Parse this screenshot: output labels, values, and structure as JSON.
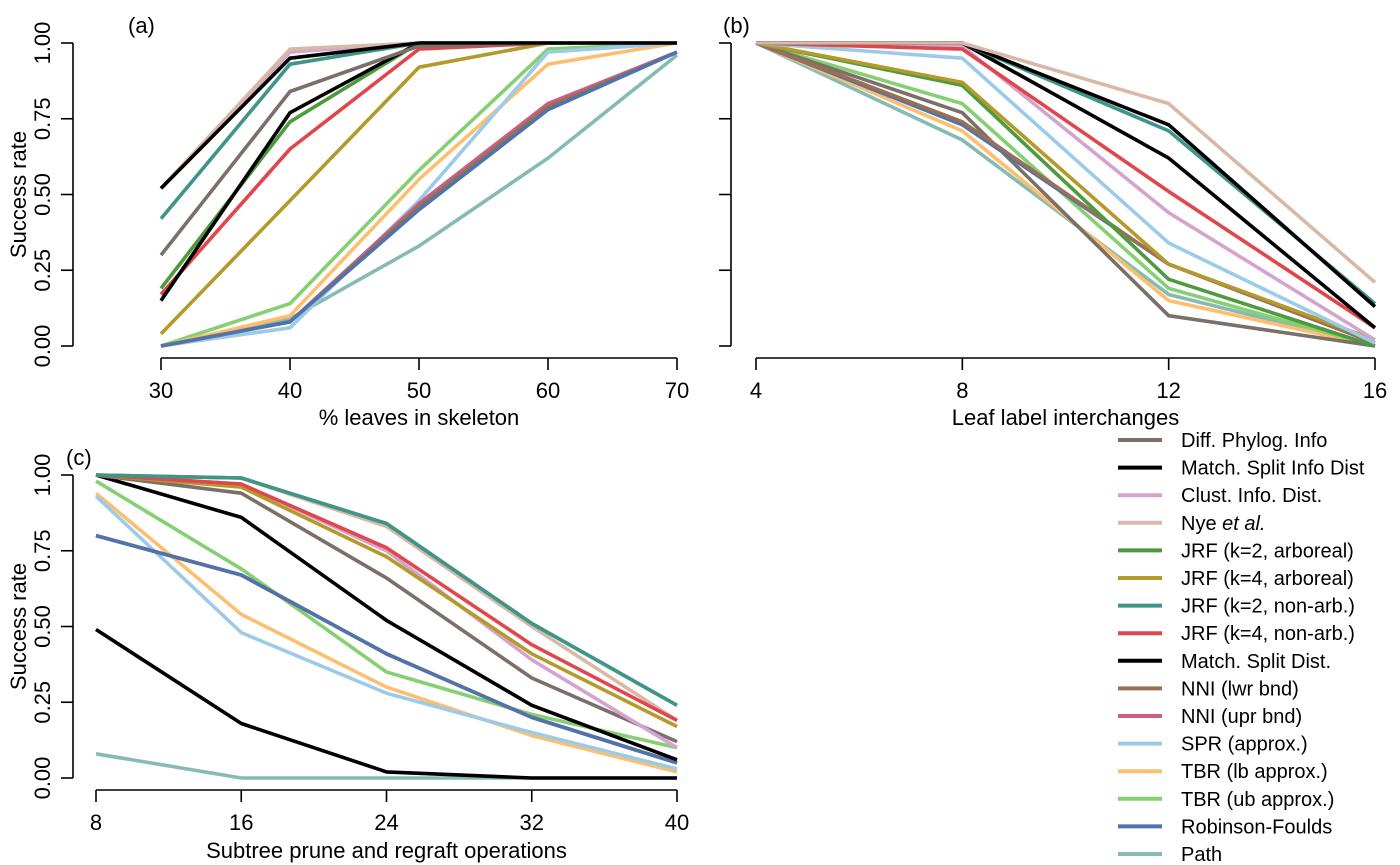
{
  "colors": {
    "diff_phylog": "#7b6f6a",
    "black": "#000000",
    "clust": "#d4a4cf",
    "nye": "#d8b9a8",
    "jrf2a": "#4e9a3f",
    "jrf4a": "#b39a2a",
    "jrf2n": "#3f9589",
    "jrf4n": "#e0474c",
    "nni_lwr": "#9a6f55",
    "nni_upr": "#cc5e88",
    "spr": "#9ccbea",
    "tbr_lb": "#fdbf6f",
    "tbr_ub": "#86cf72",
    "rf": "#4e74ab",
    "path": "#86bbb4"
  },
  "legend": [
    {
      "label": "Diff. Phylog. Info",
      "color": "#7b6f6a"
    },
    {
      "label": "Match. Split Info Dist",
      "color": "#000000"
    },
    {
      "label": "Clust. Info. Dist.",
      "color": "#d4a4cf"
    },
    {
      "label": "Nye ",
      "label_italic": "et al.",
      "color": "#d8b9a8"
    },
    {
      "label": "JRF (k=2, arboreal)",
      "color": "#4e9a3f"
    },
    {
      "label": "JRF (k=4, arboreal)",
      "color": "#b39a2a"
    },
    {
      "label": "JRF (k=2, non-arb.)",
      "color": "#3f9589"
    },
    {
      "label": "JRF (k=4, non-arb.)",
      "color": "#e0474c"
    },
    {
      "label": "Match. Split Dist.",
      "color": "#000000"
    },
    {
      "label": "NNI (lwr bnd)",
      "color": "#9a6f55"
    },
    {
      "label": "NNI (upr bnd)",
      "color": "#cc5e88"
    },
    {
      "label": "SPR (approx.)",
      "color": "#9ccbea"
    },
    {
      "label": "TBR (lb approx.)",
      "color": "#fdbf6f"
    },
    {
      "label": "TBR (ub approx.)",
      "color": "#86cf72"
    },
    {
      "label": "Robinson-Foulds",
      "color": "#4e74ab"
    },
    {
      "label": "Path",
      "color": "#86bbb4"
    }
  ],
  "chart_data": [
    {
      "type": "line",
      "panel": "(a)",
      "xlabel": "% leaves in skeleton",
      "ylabel": "Success rate",
      "x": [
        30,
        40,
        50,
        60,
        70
      ],
      "xticks": [
        "30",
        "40",
        "50",
        "60",
        "70"
      ],
      "ylim": [
        0,
        1
      ],
      "yticks": [
        "0.00",
        "0.25",
        "0.50",
        "0.75",
        "1.00"
      ],
      "show_y_labels": true,
      "series": [
        {
          "name": "Path",
          "color": "#86bbb4",
          "values": [
            0.0,
            0.09,
            0.33,
            0.62,
            0.96
          ]
        },
        {
          "name": "TBR (ub approx.)",
          "color": "#86cf72",
          "values": [
            0.0,
            0.14,
            0.58,
            0.98,
            1.0
          ]
        },
        {
          "name": "TBR (lb approx.)",
          "color": "#fdbf6f",
          "values": [
            0.0,
            0.1,
            0.55,
            0.93,
            1.0
          ]
        },
        {
          "name": "SPR (approx.)",
          "color": "#9ccbea",
          "values": [
            0.0,
            0.06,
            0.48,
            0.97,
            1.0
          ]
        },
        {
          "name": "NNI (upr bnd)",
          "color": "#cc5e88",
          "values": [
            0.0,
            0.08,
            0.47,
            0.8,
            0.97
          ]
        },
        {
          "name": "NNI (lwr bnd)",
          "color": "#9a6f55",
          "values": [
            0.0,
            0.08,
            0.46,
            0.79,
            0.97
          ]
        },
        {
          "name": "Robinson-Foulds",
          "color": "#4e74ab",
          "values": [
            0.0,
            0.08,
            0.45,
            0.78,
            0.97
          ]
        },
        {
          "name": "JRF (k=4, arboreal)",
          "color": "#b39a2a",
          "values": [
            0.04,
            0.48,
            0.92,
            1.0,
            1.0
          ]
        },
        {
          "name": "JRF (k=4, non-arb.)",
          "color": "#e0474c",
          "values": [
            0.17,
            0.65,
            0.98,
            1.0,
            1.0
          ]
        },
        {
          "name": "JRF (k=2, arboreal)",
          "color": "#4e9a3f",
          "values": [
            0.19,
            0.74,
            1.0,
            1.0,
            1.0
          ]
        },
        {
          "name": "Match. Split Dist.",
          "color": "#000000",
          "values": [
            0.15,
            0.77,
            1.0,
            1.0,
            1.0
          ]
        },
        {
          "name": "Diff. Phylog. Info",
          "color": "#7b6f6a",
          "values": [
            0.3,
            0.84,
            0.99,
            1.0,
            1.0
          ]
        },
        {
          "name": "JRF (k=2, non-arb.)",
          "color": "#3f9589",
          "values": [
            0.42,
            0.93,
            1.0,
            1.0,
            1.0
          ]
        },
        {
          "name": "Clust. Info. Dist.",
          "color": "#d4a4cf",
          "values": [
            0.52,
            0.97,
            1.0,
            1.0,
            1.0
          ]
        },
        {
          "name": "Nye et al.",
          "color": "#d8b9a8",
          "values": [
            0.52,
            0.98,
            1.0,
            1.0,
            1.0
          ]
        },
        {
          "name": "Match. Split Info Dist",
          "color": "#000000",
          "values": [
            0.52,
            0.95,
            1.0,
            1.0,
            1.0
          ]
        }
      ]
    },
    {
      "type": "line",
      "panel": "(b)",
      "xlabel": "Leaf label interchanges",
      "ylabel": "",
      "x": [
        4,
        8,
        12,
        16
      ],
      "xticks": [
        "4",
        "8",
        "12",
        "16"
      ],
      "ylim": [
        0,
        1
      ],
      "yticks": [
        "0.00",
        "0.25",
        "0.50",
        "0.75",
        "1.00"
      ],
      "show_y_labels": false,
      "series": [
        {
          "name": "Path",
          "color": "#86bbb4",
          "values": [
            1.0,
            0.68,
            0.17,
            0.0
          ]
        },
        {
          "name": "TBR (lb approx.)",
          "color": "#fdbf6f",
          "values": [
            1.0,
            0.71,
            0.15,
            0.0
          ]
        },
        {
          "name": "TBR (ub approx.)",
          "color": "#86cf72",
          "values": [
            1.0,
            0.8,
            0.19,
            0.0
          ]
        },
        {
          "name": "Diff. Phylog. Info",
          "color": "#7b6f6a",
          "values": [
            1.0,
            0.77,
            0.1,
            0.0
          ]
        },
        {
          "name": "Robinson-Foulds",
          "color": "#4e74ab",
          "values": [
            1.0,
            0.73,
            0.27,
            0.01
          ]
        },
        {
          "name": "NNI (lwr bnd)",
          "color": "#9a6f55",
          "values": [
            1.0,
            0.74,
            0.27,
            0.01
          ]
        },
        {
          "name": "JRF (k=2, arboreal)",
          "color": "#4e9a3f",
          "values": [
            1.0,
            0.86,
            0.22,
            0.0
          ]
        },
        {
          "name": "JRF (k=4, arboreal)",
          "color": "#b39a2a",
          "values": [
            1.0,
            0.87,
            0.27,
            0.02
          ]
        },
        {
          "name": "SPR (approx.)",
          "color": "#9ccbea",
          "values": [
            1.0,
            0.95,
            0.34,
            0.01
          ]
        },
        {
          "name": "Clust. Info. Dist.",
          "color": "#d4a4cf",
          "values": [
            1.0,
            0.99,
            0.44,
            0.02
          ]
        },
        {
          "name": "JRF (k=4, non-arb.)",
          "color": "#e0474c",
          "values": [
            1.0,
            0.98,
            0.51,
            0.06
          ]
        },
        {
          "name": "Match. Split Dist.",
          "color": "#000000",
          "values": [
            1.0,
            1.0,
            0.62,
            0.06
          ]
        },
        {
          "name": "JRF (k=2, non-arb.)",
          "color": "#3f9589",
          "values": [
            1.0,
            1.0,
            0.71,
            0.14
          ]
        },
        {
          "name": "Match. Split Info Dist",
          "color": "#000000",
          "values": [
            1.0,
            1.0,
            0.73,
            0.13
          ]
        },
        {
          "name": "Nye et al.",
          "color": "#d8b9a8",
          "values": [
            1.0,
            1.0,
            0.8,
            0.21
          ]
        }
      ]
    },
    {
      "type": "line",
      "panel": "(c)",
      "xlabel": "Subtree prune and regraft operations",
      "ylabel": "Success rate",
      "x": [
        8,
        16,
        24,
        32,
        40
      ],
      "xticks": [
        "8",
        "16",
        "24",
        "32",
        "40"
      ],
      "ylim": [
        0,
        1
      ],
      "yticks": [
        "0.00",
        "0.25",
        "0.50",
        "0.75",
        "1.00"
      ],
      "show_y_labels": true,
      "series": [
        {
          "name": "Path",
          "color": "#86bbb4",
          "values": [
            0.08,
            0.0,
            0.0,
            0.0,
            0.0
          ]
        },
        {
          "name": "Match. Split Dist.",
          "color": "#000000",
          "values": [
            0.49,
            0.18,
            0.02,
            0.0,
            0.0
          ]
        },
        {
          "name": "TBR (lb approx.)",
          "color": "#fdbf6f",
          "values": [
            0.94,
            0.54,
            0.3,
            0.14,
            0.02
          ]
        },
        {
          "name": "SPR (approx.)",
          "color": "#9ccbea",
          "values": [
            0.93,
            0.48,
            0.28,
            0.15,
            0.03
          ]
        },
        {
          "name": "TBR (ub approx.)",
          "color": "#86cf72",
          "values": [
            0.98,
            0.69,
            0.35,
            0.21,
            0.1
          ]
        },
        {
          "name": "NNI (lwr bnd)",
          "color": "#9a6f55",
          "values": [
            0.8,
            0.67,
            0.41,
            0.2,
            0.05
          ]
        },
        {
          "name": "NNI (upr bnd)",
          "color": "#cc5e88",
          "values": [
            0.8,
            0.67,
            0.41,
            0.2,
            0.05
          ]
        },
        {
          "name": "Robinson-Foulds",
          "color": "#4e74ab",
          "values": [
            0.8,
            0.67,
            0.41,
            0.2,
            0.05
          ]
        },
        {
          "name": "Match. Split Info Dist",
          "color": "#000000",
          "values": [
            1.0,
            0.86,
            0.52,
            0.24,
            0.06
          ]
        },
        {
          "name": "Diff. Phylog. Info",
          "color": "#7b6f6a",
          "values": [
            1.0,
            0.94,
            0.66,
            0.33,
            0.12
          ]
        },
        {
          "name": "Clust. Info. Dist.",
          "color": "#d4a4cf",
          "values": [
            1.0,
            0.97,
            0.75,
            0.39,
            0.1
          ]
        },
        {
          "name": "JRF (k=4, arboreal)",
          "color": "#b39a2a",
          "values": [
            1.0,
            0.96,
            0.73,
            0.41,
            0.17
          ]
        },
        {
          "name": "Nye et al.",
          "color": "#d8b9a8",
          "values": [
            1.0,
            0.99,
            0.83,
            0.5,
            0.19
          ]
        },
        {
          "name": "JRF (k=4, non-arb.)",
          "color": "#e0474c",
          "values": [
            1.0,
            0.97,
            0.76,
            0.44,
            0.19
          ]
        },
        {
          "name": "JRF (k=2, arboreal)",
          "color": "#4e9a3f",
          "values": [
            1.0,
            0.99,
            0.84,
            0.51,
            0.24
          ]
        },
        {
          "name": "JRF (k=2, non-arb.)",
          "color": "#3f9589",
          "values": [
            1.0,
            0.99,
            0.84,
            0.51,
            0.24
          ]
        }
      ]
    }
  ]
}
